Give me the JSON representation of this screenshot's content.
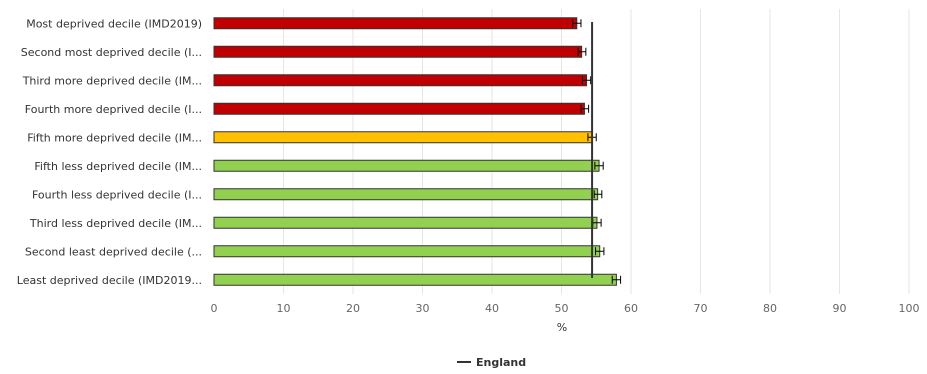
{
  "chart_data": {
    "type": "bar",
    "orientation": "horizontal",
    "categories": [
      "Most deprived decile (IMD2019)",
      "Second most deprived decile (I...",
      "Third more deprived decile (IM...",
      "Fourth more deprived decile (I...",
      "Fifth more deprived decile (IM...",
      "Fifth less deprived decile (IM...",
      "Fourth less deprived decile (I...",
      "Third less deprived decile (IM...",
      "Second least deprived decile (...",
      "Least deprived decile (IMD2019..."
    ],
    "values": [
      52.2,
      52.9,
      53.6,
      53.3,
      54.4,
      55.4,
      55.2,
      55.1,
      55.5,
      57.9
    ],
    "ci_low": [
      51.6,
      52.4,
      53.0,
      52.8,
      53.8,
      54.8,
      54.7,
      54.5,
      54.9,
      57.3
    ],
    "ci_high": [
      52.8,
      53.5,
      54.2,
      53.9,
      55.0,
      56.0,
      55.8,
      55.7,
      56.1,
      58.5
    ],
    "bar_colors": [
      "#c00000",
      "#c00000",
      "#c00000",
      "#c00000",
      "#ffc000",
      "#92d050",
      "#92d050",
      "#92d050",
      "#92d050",
      "#92d050"
    ],
    "reference_line": {
      "name": "England",
      "value": 54.4,
      "color": "#333333"
    },
    "xlim": [
      0,
      100
    ],
    "x_ticks": [
      "0",
      "10",
      "20",
      "30",
      "40",
      "50",
      "60",
      "70",
      "80",
      "90",
      "100"
    ],
    "xlabel": "%",
    "ylabel": "",
    "title": "",
    "grid": true,
    "legend_position": "bottom"
  }
}
